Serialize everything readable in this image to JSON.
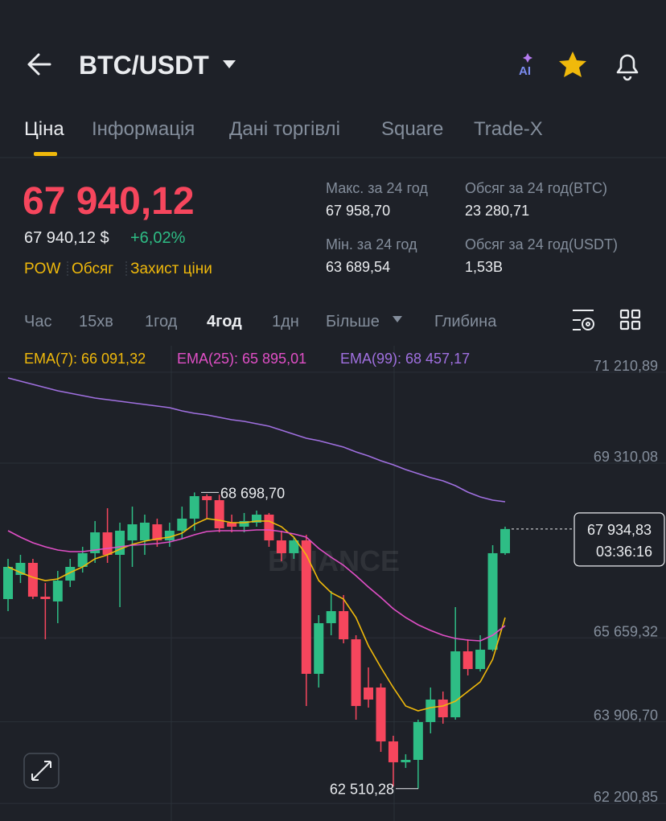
{
  "header": {
    "title": "BTC/USDT",
    "ai": "AI"
  },
  "tabs": [
    "Ціна",
    "Інформація",
    "Дані торгівлі",
    "Square",
    "Trade-X"
  ],
  "price": {
    "last": "67 940,12",
    "fiat": "67 940,12 $",
    "change": "+6,02%",
    "tags": [
      "POW",
      "Обсяг",
      "Захист ціни"
    ]
  },
  "stats": [
    {
      "label": "Макс. за 24 год",
      "value": "67 958,70"
    },
    {
      "label": "Обсяг за 24 год(BTC)",
      "value": "23 280,71"
    },
    {
      "label": "Мін. за 24 год",
      "value": "63 689,54"
    },
    {
      "label": "Обсяг за 24 год(USDT)",
      "value": "1,53B"
    }
  ],
  "intervals": [
    "Час",
    "15хв",
    "1год",
    "4год",
    "1дн",
    "Більше",
    "Глибина"
  ],
  "chart": {
    "type": "candlestick",
    "watermark": "BINANCE",
    "up_color": "#2ebd85",
    "down_color": "#f6465d",
    "ylim": [
      61834,
      71763
    ],
    "yticks": [
      {
        "value": 71210.89,
        "label": "71 210,89"
      },
      {
        "value": 69310.08,
        "label": "69 310,08"
      },
      {
        "value": 65659.32,
        "label": "65 659,32"
      },
      {
        "value": 63906.7,
        "label": "63 906,70"
      },
      {
        "value": 62200.85,
        "label": "62 200,85"
      }
    ],
    "open": [
      66471,
      66975,
      67227,
      66521,
      66421,
      66857,
      67143,
      67429,
      67865,
      67395,
      67697,
      67697,
      68033,
      67697,
      67899,
      68151,
      68621,
      68537,
      68067,
      67983,
      68067,
      68235,
      67697,
      67429,
      67697,
      64909,
      65967,
      66219,
      65631,
      64623,
      64623,
      63497,
      63061,
      63111,
      63901,
      64371,
      64001,
      65379,
      65009,
      65413,
      67429
    ],
    "high": [
      67311,
      67395,
      67311,
      66807,
      67059,
      67311,
      67563,
      68101,
      68369,
      68067,
      68403,
      68235,
      68151,
      68067,
      68403,
      68698.7,
      68660,
      68650,
      68235,
      68269,
      68319,
      68269,
      67899,
      67765,
      67815,
      66135,
      66639,
      66555,
      65715,
      65043,
      64707,
      63615,
      63229,
      63951,
      64623,
      64539,
      66303,
      65631,
      65715,
      67597,
      67983
    ],
    "low": [
      66219,
      66807,
      66471,
      65631,
      65967,
      66723,
      67025,
      67227,
      67227,
      66303,
      67143,
      67395,
      67563,
      67563,
      67731,
      67899,
      68151,
      67865,
      67865,
      67865,
      67983,
      67563,
      67261,
      67311,
      64237,
      64623,
      65715,
      65547,
      63951,
      64203,
      63279,
      62557,
      62943,
      62510.28,
      63665,
      63867,
      63951,
      64875,
      64959,
      65379,
      67395
    ],
    "close": [
      67143,
      67227,
      66521,
      66471,
      66857,
      67143,
      67429,
      67865,
      67395,
      67899,
      68033,
      68067,
      67697,
      67899,
      68151,
      68621,
      68537,
      67949,
      67983,
      68101,
      68235,
      67697,
      67429,
      67697,
      64909,
      65967,
      66219,
      65631,
      64237,
      64371,
      63497,
      63061,
      63111,
      63901,
      64371,
      64001,
      65379,
      65009,
      65413,
      67429,
      67934.83
    ],
    "series": [
      {
        "label": "EMA(7): 66 091,32",
        "color": "#f0b90b",
        "values": [
          67143,
          67025,
          66925,
          66857,
          66891,
          67025,
          67143,
          67311,
          67395,
          67513,
          67613,
          67681,
          67731,
          67765,
          67849,
          68033,
          68151,
          68117,
          68067,
          68067,
          68101,
          68101,
          67983,
          67765,
          67395,
          66857,
          66605,
          66471,
          66085,
          65497,
          65043,
          64623,
          64237,
          64136,
          64203,
          64237,
          64337,
          64539,
          64741,
          65211,
          66085
        ]
      },
      {
        "label": "EMA(25): 65 895,01",
        "color": "#e04fc6",
        "values": [
          67899,
          67765,
          67647,
          67563,
          67496,
          67462,
          67462,
          67496,
          67529,
          67563,
          67597,
          67613,
          67630,
          67664,
          67731,
          67815,
          67882,
          67899,
          67899,
          67899,
          67916,
          67916,
          67882,
          67832,
          67765,
          67529,
          67345,
          67177,
          66958,
          66723,
          66505,
          66269,
          66085,
          65933,
          65816,
          65715,
          65648,
          65614,
          65597,
          65715,
          65917
        ]
      },
      {
        "label": "EMA(99): 68 457,17",
        "color": "#a070e0",
        "values": [
          71091,
          71024,
          70957,
          70889,
          70822,
          70772,
          70721,
          70671,
          70637,
          70604,
          70570,
          70537,
          70503,
          70469,
          70402,
          70352,
          70318,
          70268,
          70217,
          70184,
          70133,
          70083,
          69999,
          69915,
          69831,
          69781,
          69713,
          69646,
          69545,
          69461,
          69361,
          69277,
          69176,
          69092,
          69008,
          68941,
          68840,
          68705,
          68605,
          68537,
          68504
        ]
      }
    ],
    "annotations": [
      {
        "value": 68698.7,
        "label": "68 698,70"
      },
      {
        "value": 62510.28,
        "label": "62 510,28"
      }
    ],
    "last_price": {
      "value": 67934.83,
      "label": "67 934,83",
      "timer": "03:36:16"
    }
  }
}
